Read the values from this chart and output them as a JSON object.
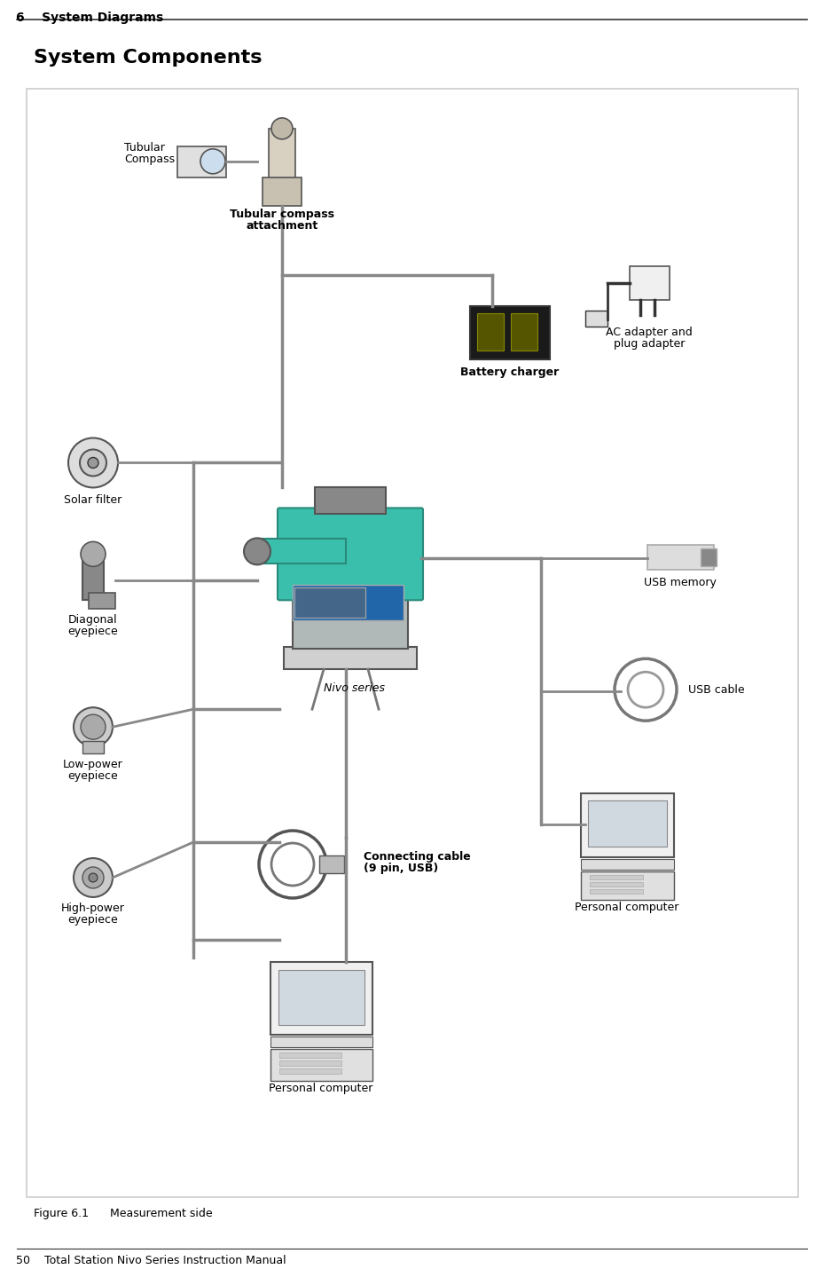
{
  "page_header": "6    System Diagrams",
  "section_title": "System Components",
  "figure_caption": "Figure 6.1      Measurement side",
  "footer": "50    Total Station Nivo Series Instruction Manual",
  "bg_color": "#ffffff",
  "box_color": "#ffffff",
  "box_edge_color": "#cccccc",
  "line_color": "#888888",
  "header_line_color": "#333333",
  "text_color": "#000000",
  "component_labels": {
    "tubular_compass": [
      "Tubular",
      "Compass"
    ],
    "tubular_compass_attachment": [
      "Tubular compass",
      "attachment"
    ],
    "nivo_series": "Nivo series",
    "battery_charger": "Battery charger",
    "ac_adapter": [
      "AC adapter and",
      "plug adapter"
    ],
    "solar_filter": "Solar filter",
    "diagonal_eyepiece": [
      "Diagonal",
      "eyepiece"
    ],
    "low_power_eyepiece": [
      "Low-power",
      "eyepiece"
    ],
    "high_power_eyepiece": [
      "High-power",
      "eyepiece"
    ],
    "connecting_cable": [
      "Connecting cable",
      "(9 pin, USB)"
    ],
    "personal_computer_bottom": "Personal computer",
    "usb_memory": "USB memory",
    "usb_cable": "USB cable",
    "personal_computer_right": "Personal computer"
  },
  "font_header": 10,
  "font_title": 16,
  "font_label": 9,
  "font_caption": 9,
  "font_footer": 9
}
